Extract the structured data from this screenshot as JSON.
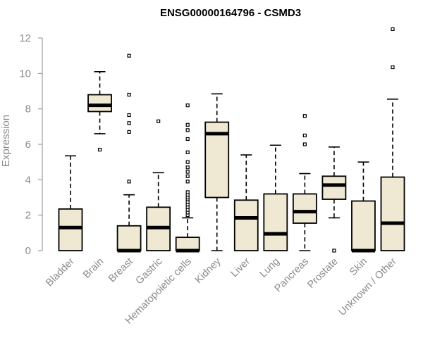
{
  "chart_data": {
    "type": "boxplot",
    "title": "ENSG00000164796 - CSMD3",
    "xlabel": "",
    "ylabel": "Expression",
    "ylim": [
      0,
      12.5
    ],
    "yticks": [
      0,
      2,
      4,
      6,
      8,
      10,
      12
    ],
    "grid": false,
    "colors": {
      "box_fill": "#efe8d2",
      "box_stroke": "#000000",
      "axis": "#8a8a8a"
    },
    "categories": [
      "Bladder",
      "Brain",
      "Breast",
      "Gastric",
      "Hematopoietic cells",
      "Kidney",
      "Liver",
      "Lung",
      "Pancreas",
      "Prostate",
      "Skin",
      "Unknown / Other"
    ],
    "boxes": [
      {
        "q1": 0.0,
        "median": 1.3,
        "q3": 2.35,
        "whisker_low": 0.0,
        "whisker_high": 5.35,
        "outliers": []
      },
      {
        "q1": 7.85,
        "median": 8.2,
        "q3": 8.8,
        "whisker_low": 6.6,
        "whisker_high": 10.1,
        "outliers": [
          5.7
        ]
      },
      {
        "q1": 0.0,
        "median": 0.0,
        "q3": 1.4,
        "whisker_low": 0.0,
        "whisker_high": 3.15,
        "outliers": [
          3.9,
          6.7,
          7.2,
          7.65,
          8.8,
          11.0
        ]
      },
      {
        "q1": 0.0,
        "median": 1.3,
        "q3": 2.45,
        "whisker_low": 0.0,
        "whisker_high": 4.4,
        "outliers": [
          7.3
        ]
      },
      {
        "q1": 0.0,
        "median": 0.0,
        "q3": 0.75,
        "whisker_low": 0.0,
        "whisker_high": 1.85,
        "outliers": [
          2.0,
          2.15,
          2.3,
          2.45,
          2.6,
          2.75,
          2.9,
          3.0,
          3.15,
          3.3,
          3.9,
          4.2,
          4.45,
          4.7,
          5.0,
          5.55,
          6.3,
          6.8,
          7.1,
          8.2
        ]
      },
      {
        "q1": 3.0,
        "median": 6.6,
        "q3": 7.25,
        "whisker_low": 0.0,
        "whisker_high": 8.85,
        "outliers": []
      },
      {
        "q1": 0.0,
        "median": 1.85,
        "q3": 2.85,
        "whisker_low": 0.0,
        "whisker_high": 5.4,
        "outliers": []
      },
      {
        "q1": 0.0,
        "median": 0.95,
        "q3": 3.2,
        "whisker_low": 0.0,
        "whisker_high": 5.95,
        "outliers": []
      },
      {
        "q1": 1.55,
        "median": 2.2,
        "q3": 3.2,
        "whisker_low": 0.0,
        "whisker_high": 4.35,
        "outliers": [
          6.0,
          6.5,
          7.6
        ]
      },
      {
        "q1": 2.9,
        "median": 3.7,
        "q3": 4.2,
        "whisker_low": 1.85,
        "whisker_high": 5.85,
        "outliers": [
          0.0
        ]
      },
      {
        "q1": 0.0,
        "median": 0.0,
        "q3": 2.8,
        "whisker_low": 0.0,
        "whisker_high": 5.0,
        "outliers": []
      },
      {
        "q1": 0.0,
        "median": 1.55,
        "q3": 4.15,
        "whisker_low": 0.0,
        "whisker_high": 8.55,
        "outliers": [
          10.35,
          12.5
        ]
      }
    ]
  }
}
